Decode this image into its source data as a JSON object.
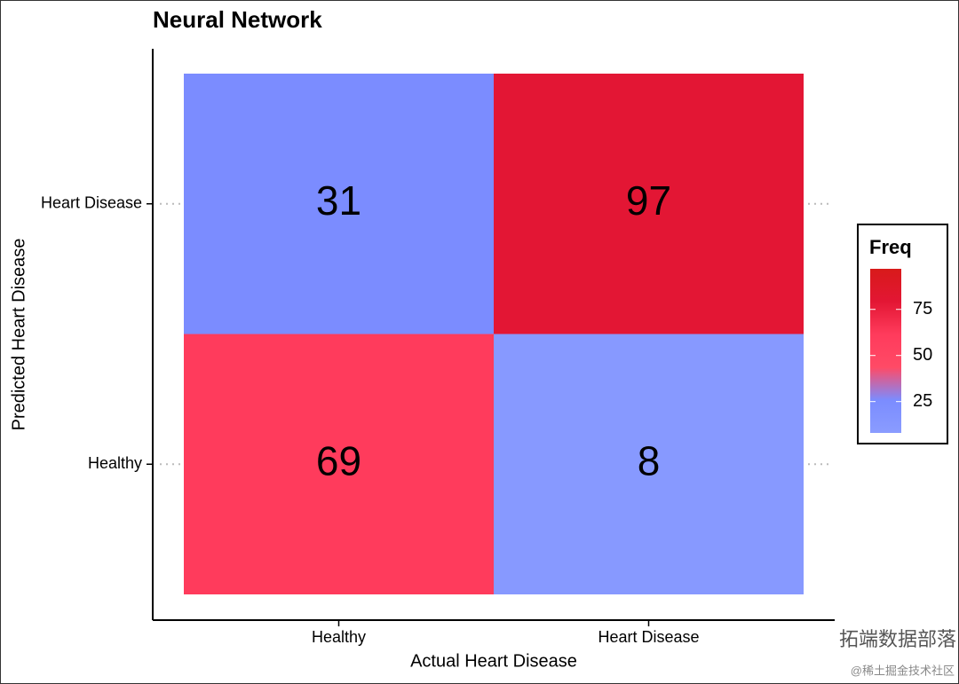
{
  "chart_data": {
    "type": "heatmap",
    "title": "Neural Network",
    "x_label": "Actual Heart Disease",
    "y_label": "Predicted Heart Disease",
    "x_categories": [
      "Healthy",
      "Heart Disease"
    ],
    "y_categories": [
      "Healthy",
      "Heart Disease"
    ],
    "values": [
      [
        69,
        8
      ],
      [
        31,
        97
      ]
    ],
    "colors": [
      [
        "#ff3b5c",
        "#8799ff"
      ],
      [
        "#7b8cff",
        "#e31634"
      ]
    ],
    "colorbar": {
      "title": "Freq",
      "lim": [
        8,
        97
      ],
      "ticks": [
        25,
        50,
        75
      ],
      "colors": [
        "#8a9cff",
        "#7b8cff",
        "#ff4a66",
        "#ff3b5c",
        "#e31634",
        "#d81a1a"
      ]
    }
  },
  "watermark": [
    "拓端数据部落",
    "@稀土掘金技术社区"
  ]
}
